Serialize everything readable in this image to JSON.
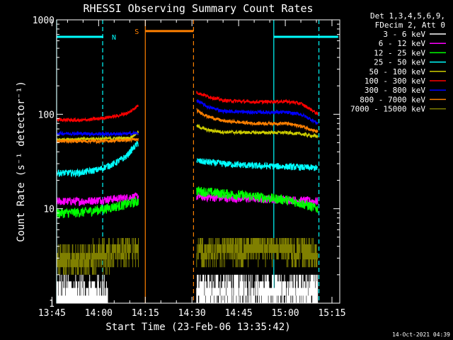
{
  "chart_data": {
    "type": "line",
    "title": "RHESSI Observing Summary Count Rates",
    "xlabel": "Start Time (23-Feb-06 13:35:42)",
    "ylabel": "Count Rate (s⁻¹ detector⁻¹)",
    "y_scale": "log",
    "ylim": [
      1,
      1000
    ],
    "xlim_minutes": [
      826.5,
      917.5
    ],
    "x_ticks": [
      {
        "minute": 825,
        "label": "13:45"
      },
      {
        "minute": 840,
        "label": "14:00"
      },
      {
        "minute": 855,
        "label": "14:15"
      },
      {
        "minute": 870,
        "label": "14:30"
      },
      {
        "minute": 885,
        "label": "14:45"
      },
      {
        "minute": 900,
        "label": "15:00"
      },
      {
        "minute": 915,
        "label": "15:15"
      }
    ],
    "y_ticks": [
      {
        "value": 1,
        "label": "1"
      },
      {
        "value": 10,
        "label": "10"
      },
      {
        "value": 100,
        "label": "100"
      },
      {
        "value": 1000,
        "label": "1000"
      }
    ],
    "legend": {
      "placement": "top-right",
      "header": [
        "Det 1,3,4,5,6,9,",
        "FDecim 2, Att 0"
      ]
    },
    "markers": [
      {
        "label": "N",
        "color": "#00ffff",
        "y_value": 660,
        "start": 826.5,
        "end": 841.5
      },
      {
        "label": "S",
        "color": "#ff8000",
        "y_value": 760,
        "start": 855.0,
        "end": 870.5
      },
      {
        "label": "",
        "color": "#00ffff",
        "y_value": 660,
        "start": 896.3,
        "end": 917.0
      }
    ],
    "vlines": [
      {
        "minute": 826.5,
        "color": "#00ffff",
        "dashed": false
      },
      {
        "minute": 841.3,
        "color": "#00ffff",
        "dashed": true
      },
      {
        "minute": 855.0,
        "color": "#ff8000",
        "dashed": false
      },
      {
        "minute": 870.5,
        "color": "#ff8000",
        "dashed": true
      },
      {
        "minute": 896.3,
        "color": "#00ffff",
        "dashed": false
      },
      {
        "minute": 910.8,
        "color": "#00ffff",
        "dashed": true
      }
    ],
    "gap": [
      853.0,
      871.5
    ],
    "series": [
      {
        "name": "3 - 6 keV",
        "color": "#ffffff",
        "noise": 0,
        "segments": [
          [
            [
              826.5,
              1.1
            ],
            [
              843.0,
              1.1
            ]
          ],
          [
            [
              871.5,
              1.2
            ],
            [
              910.5,
              1.2
            ]
          ]
        ]
      },
      {
        "name": "6 - 12 keV",
        "color": "#ff00ff",
        "noise": 0.05,
        "segments": [
          [
            [
              826.5,
              12
            ],
            [
              835,
              12
            ],
            [
              842,
              12.5
            ],
            [
              848,
              13
            ],
            [
              852.8,
              13.5
            ]
          ],
          [
            [
              871.5,
              13.5
            ],
            [
              880,
              13
            ],
            [
              890,
              12.8
            ],
            [
              900,
              12.5
            ],
            [
              910.5,
              12
            ]
          ]
        ]
      },
      {
        "name": "12 - 25 keV",
        "color": "#00ff00",
        "noise": 0.06,
        "segments": [
          [
            [
              826.5,
              9
            ],
            [
              835,
              9.2
            ],
            [
              842,
              10
            ],
            [
              848,
              11
            ],
            [
              852.8,
              12
            ]
          ],
          [
            [
              871.5,
              15.5
            ],
            [
              880,
              14.5
            ],
            [
              890,
              13.5
            ],
            [
              900,
              12.5
            ],
            [
              905,
              11.5
            ],
            [
              910.5,
              10
            ]
          ]
        ]
      },
      {
        "name": "25 - 50 keV",
        "color": "#00ffff",
        "noise": 0.04,
        "segments": [
          [
            [
              826.5,
              24
            ],
            [
              834,
              24
            ],
            [
              840,
              26
            ],
            [
              845,
              30
            ],
            [
              849,
              36
            ],
            [
              852.8,
              50
            ]
          ],
          [
            [
              871.5,
              32
            ],
            [
              880,
              30
            ],
            [
              890,
              28.5
            ],
            [
              900,
              28
            ],
            [
              910.5,
              27
            ]
          ]
        ]
      },
      {
        "name": "50 - 100 keV",
        "color": "#cccc00",
        "noise": 0.02,
        "segments": [
          [
            [
              826.5,
              54
            ],
            [
              840,
              55
            ],
            [
              850,
              56
            ],
            [
              852.8,
              65
            ]
          ],
          [
            [
              871.5,
              75
            ],
            [
              875,
              68
            ],
            [
              880,
              65
            ],
            [
              890,
              64
            ],
            [
              900,
              64
            ],
            [
              905,
              62
            ],
            [
              910.5,
              58
            ]
          ]
        ]
      },
      {
        "name": "100 - 300 keV",
        "color": "#ff0000",
        "noise": 0.02,
        "segments": [
          [
            [
              826.5,
              88
            ],
            [
              834,
              86
            ],
            [
              840,
              90
            ],
            [
              846,
              96
            ],
            [
              850,
              105
            ],
            [
              852.8,
              125
            ]
          ],
          [
            [
              871.5,
              170
            ],
            [
              875,
              155
            ],
            [
              880,
              140
            ],
            [
              890,
              135
            ],
            [
              900,
              137
            ],
            [
              905,
              130
            ],
            [
              910.5,
              100
            ]
          ]
        ]
      },
      {
        "name": "300 - 800 keV",
        "color": "#0000ff",
        "noise": 0.02,
        "segments": [
          [
            [
              826.5,
              63
            ],
            [
              840,
              62
            ],
            [
              848,
              62
            ],
            [
              852.8,
              63
            ]
          ],
          [
            [
              871.5,
              140
            ],
            [
              875,
              120
            ],
            [
              880,
              108
            ],
            [
              890,
              105
            ],
            [
              900,
              105
            ],
            [
              905,
              100
            ],
            [
              910.5,
              80
            ]
          ]
        ]
      },
      {
        "name": "800 - 7000 keV",
        "color": "#ff8000",
        "noise": 0.02,
        "segments": [
          [
            [
              826.5,
              52
            ],
            [
              840,
              52
            ],
            [
              848,
              53
            ],
            [
              852.8,
              54
            ]
          ],
          [
            [
              871.5,
              110
            ],
            [
              875,
              95
            ],
            [
              880,
              85
            ],
            [
              890,
              80
            ],
            [
              900,
              80
            ],
            [
              905,
              75
            ],
            [
              910.5,
              65
            ]
          ]
        ]
      },
      {
        "name": "7000 - 15000 keV",
        "color": "#808000",
        "noise": 0,
        "segments": [
          [
            [
              826.5,
              2.8
            ],
            [
              835,
              2.8
            ],
            [
              840,
              3.2
            ],
            [
              852.8,
              3.6
            ]
          ],
          [
            [
              871.5,
              3.4
            ],
            [
              885,
              3.6
            ],
            [
              895,
              4.0
            ],
            [
              902,
              3.6
            ],
            [
              910.5,
              3.0
            ]
          ]
        ]
      }
    ]
  },
  "footer": {
    "timestamp": "14-Oct-2021 04:39"
  }
}
